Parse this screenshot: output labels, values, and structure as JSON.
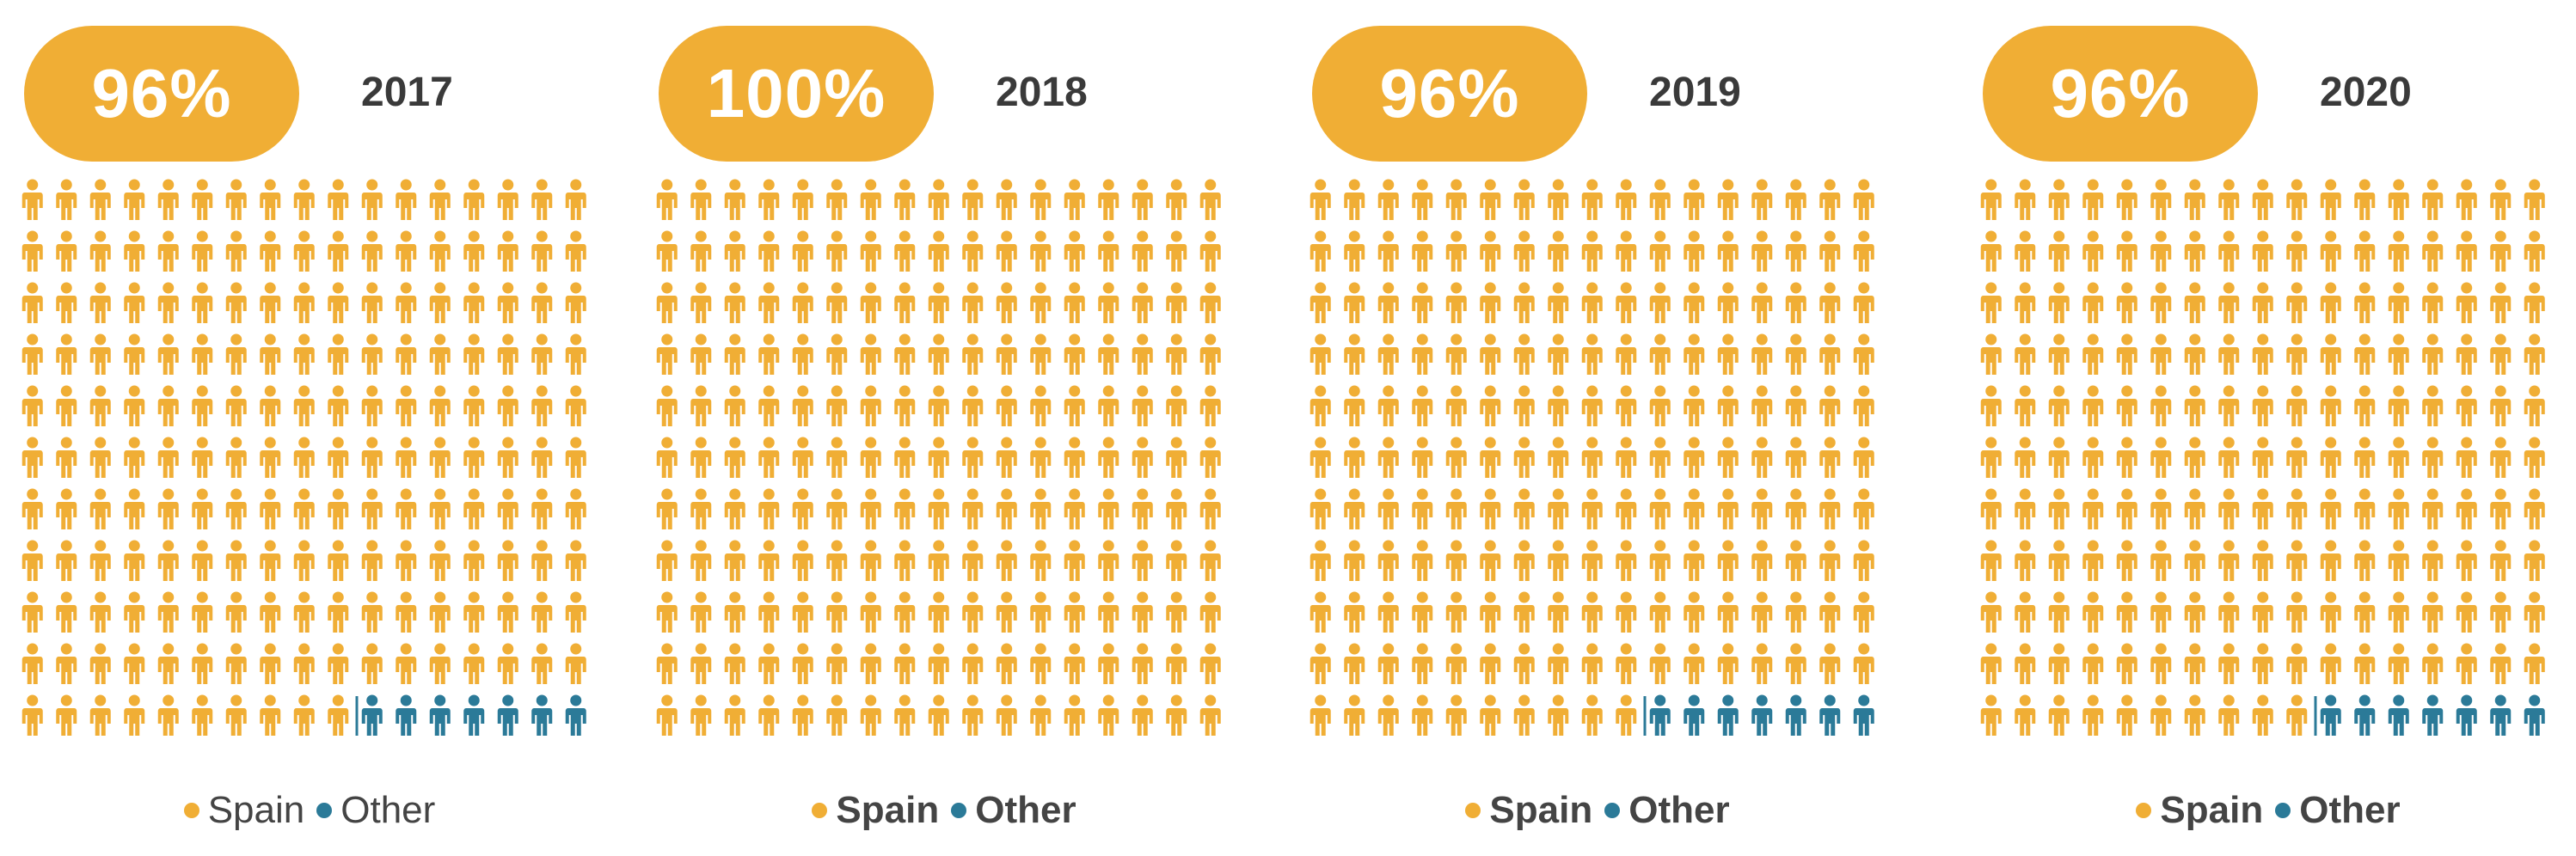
{
  "chart_data": {
    "type": "pictogram",
    "unit": "percent",
    "grid": {
      "rows": 11,
      "cols": 17
    },
    "colors": {
      "spain": "#F0AE35",
      "other": "#2B7A98"
    },
    "legend": [
      {
        "label": "Spain",
        "color": "#F0AE35"
      },
      {
        "label": "Other",
        "color": "#2B7A98"
      }
    ],
    "panels": [
      {
        "year": "2017",
        "label": "96%",
        "spain": 96,
        "other": 4,
        "legend_bold": false
      },
      {
        "year": "2018",
        "label": "100%",
        "spain": 100,
        "other": 0,
        "legend_bold": true
      },
      {
        "year": "2019",
        "label": "96%",
        "spain": 96,
        "other": 4,
        "legend_bold": true
      },
      {
        "year": "2020",
        "label": "96%",
        "spain": 96,
        "other": 4,
        "legend_bold": true
      }
    ]
  }
}
